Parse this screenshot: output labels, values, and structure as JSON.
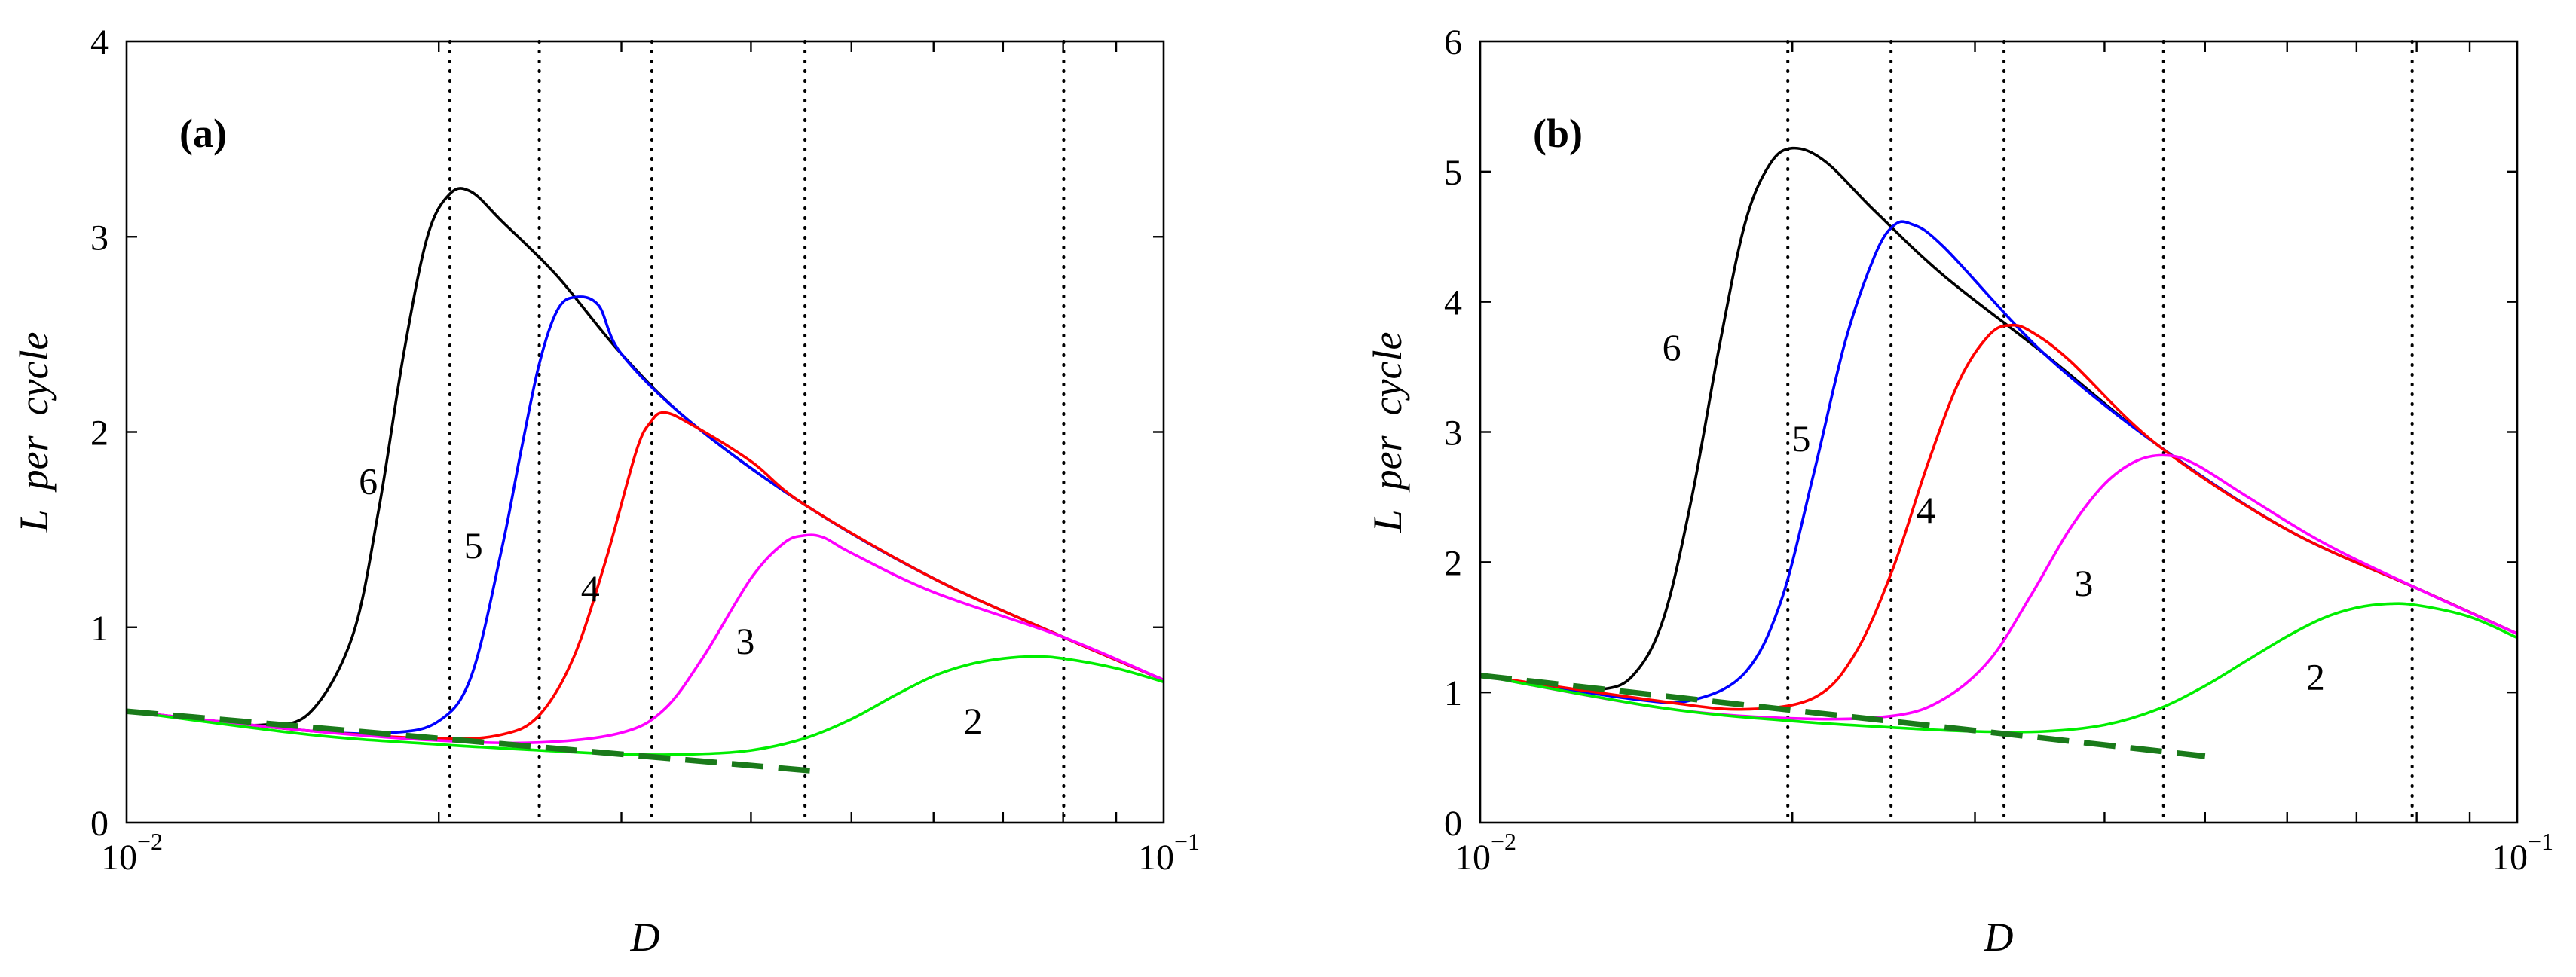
{
  "chart_data": [
    {
      "type": "line",
      "panel_label": "(a)",
      "xlabel": "D",
      "ylabel": "L  per  cycle",
      "xscale": "log",
      "xlim": [
        0.01,
        0.1
      ],
      "ylim": [
        0,
        4
      ],
      "x_ticks": [
        {
          "base": "10",
          "exp": "−2"
        },
        {
          "base": "10",
          "exp": "−1"
        }
      ],
      "y_ticks": [
        "0",
        "1",
        "2",
        "3",
        "4"
      ],
      "vlines": [
        0.0205,
        0.025,
        0.0321,
        0.0451,
        0.0801
      ],
      "series": [
        {
          "name": "6",
          "color": "#000000",
          "x": [
            0.01,
            0.012,
            0.0135,
            0.015,
            0.0165,
            0.0175,
            0.0185,
            0.0195,
            0.0205,
            0.0215,
            0.023,
            0.026,
            0.03,
            0.035,
            0.045,
            0.06,
            0.08,
            0.1
          ],
          "y": [
            0.57,
            0.52,
            0.5,
            0.56,
            0.95,
            1.6,
            2.4,
            3.0,
            3.22,
            3.23,
            3.08,
            2.8,
            2.4,
            2.05,
            1.63,
            1.25,
            0.95,
            0.73
          ]
        },
        {
          "name": "5",
          "color": "#0000ff",
          "x": [
            0.01,
            0.015,
            0.018,
            0.02,
            0.0215,
            0.023,
            0.024,
            0.025,
            0.026,
            0.027,
            0.0285,
            0.03,
            0.035,
            0.045,
            0.06,
            0.08,
            0.1
          ],
          "y": [
            0.57,
            0.47,
            0.46,
            0.52,
            0.75,
            1.4,
            1.9,
            2.35,
            2.62,
            2.69,
            2.65,
            2.4,
            2.05,
            1.63,
            1.25,
            0.95,
            0.73
          ]
        },
        {
          "name": "4",
          "color": "#ff0000",
          "x": [
            0.01,
            0.015,
            0.02,
            0.023,
            0.025,
            0.027,
            0.029,
            0.031,
            0.032,
            0.033,
            0.035,
            0.04,
            0.045,
            0.06,
            0.08,
            0.1
          ],
          "y": [
            0.57,
            0.47,
            0.43,
            0.45,
            0.55,
            0.85,
            1.35,
            1.9,
            2.05,
            2.1,
            2.04,
            1.85,
            1.63,
            1.25,
            0.95,
            0.73
          ]
        },
        {
          "name": "3",
          "color": "#ff00ff",
          "x": [
            0.01,
            0.015,
            0.02,
            0.025,
            0.03,
            0.033,
            0.036,
            0.04,
            0.043,
            0.045,
            0.047,
            0.05,
            0.06,
            0.08,
            0.1
          ],
          "y": [
            0.57,
            0.47,
            0.42,
            0.41,
            0.46,
            0.58,
            0.85,
            1.25,
            1.43,
            1.47,
            1.46,
            1.38,
            1.18,
            0.95,
            0.73
          ]
        },
        {
          "name": "2",
          "color": "#00ee00",
          "x": [
            0.01,
            0.015,
            0.02,
            0.025,
            0.03,
            0.035,
            0.04,
            0.045,
            0.05,
            0.055,
            0.06,
            0.065,
            0.07,
            0.075,
            0.08,
            0.09,
            0.1
          ],
          "y": [
            0.57,
            0.45,
            0.4,
            0.37,
            0.35,
            0.35,
            0.37,
            0.43,
            0.53,
            0.65,
            0.75,
            0.81,
            0.84,
            0.85,
            0.84,
            0.79,
            0.72
          ]
        },
        {
          "name": "asymptote",
          "color": "#1a7a1a",
          "dashed": true,
          "x": [
            0.01,
            0.047
          ],
          "y": [
            0.57,
            0.26
          ]
        }
      ],
      "curve_labels": [
        {
          "text": "6",
          "x": 0.0171,
          "y": 1.75
        },
        {
          "text": "5",
          "x": 0.0216,
          "y": 1.42
        },
        {
          "text": "4",
          "x": 0.028,
          "y": 1.2
        },
        {
          "text": "3",
          "x": 0.0395,
          "y": 0.93
        },
        {
          "text": "2",
          "x": 0.0655,
          "y": 0.52
        }
      ]
    },
    {
      "type": "line",
      "panel_label": "(b)",
      "xlabel": "D",
      "ylabel": "L  per  cycle",
      "xscale": "log",
      "xlim": [
        0.01,
        0.1
      ],
      "ylim": [
        0,
        6
      ],
      "x_ticks": [
        {
          "base": "10",
          "exp": "−2"
        },
        {
          "base": "10",
          "exp": "−1"
        }
      ],
      "y_ticks": [
        "0",
        "1",
        "2",
        "3",
        "4",
        "5",
        "6"
      ],
      "vlines": [
        0.0198,
        0.0249,
        0.032,
        0.0456,
        0.0792
      ],
      "series": [
        {
          "name": "6",
          "color": "#000000",
          "x": [
            0.01,
            0.012,
            0.013,
            0.014,
            0.015,
            0.016,
            0.017,
            0.018,
            0.019,
            0.02,
            0.0215,
            0.024,
            0.028,
            0.035,
            0.045,
            0.06,
            0.08,
            0.1
          ],
          "y": [
            1.13,
            1.03,
            1.02,
            1.12,
            1.55,
            2.5,
            3.65,
            4.6,
            5.05,
            5.18,
            5.08,
            4.7,
            4.2,
            3.6,
            2.9,
            2.25,
            1.8,
            1.45
          ]
        },
        {
          "name": "5",
          "color": "#0000ff",
          "x": [
            0.01,
            0.014,
            0.016,
            0.018,
            0.0195,
            0.021,
            0.0225,
            0.024,
            0.025,
            0.026,
            0.028,
            0.035,
            0.045,
            0.06,
            0.08,
            0.1
          ],
          "y": [
            1.13,
            0.95,
            0.94,
            1.15,
            1.7,
            2.7,
            3.7,
            4.35,
            4.58,
            4.6,
            4.42,
            3.6,
            2.9,
            2.25,
            1.8,
            1.45
          ]
        },
        {
          "name": "4",
          "color": "#ff0000",
          "x": [
            0.01,
            0.015,
            0.018,
            0.021,
            0.023,
            0.025,
            0.027,
            0.029,
            0.031,
            0.0325,
            0.034,
            0.037,
            0.045,
            0.06,
            0.08,
            0.1
          ],
          "y": [
            1.13,
            0.93,
            0.87,
            0.96,
            1.3,
            1.95,
            2.75,
            3.4,
            3.75,
            3.82,
            3.77,
            3.55,
            2.9,
            2.25,
            1.8,
            1.45
          ]
        },
        {
          "name": "3",
          "color": "#ff00ff",
          "x": [
            0.01,
            0.015,
            0.02,
            0.025,
            0.028,
            0.031,
            0.034,
            0.037,
            0.04,
            0.043,
            0.046,
            0.049,
            0.055,
            0.065,
            0.08,
            0.1
          ],
          "y": [
            1.13,
            0.88,
            0.8,
            0.82,
            0.95,
            1.25,
            1.75,
            2.25,
            2.6,
            2.78,
            2.82,
            2.75,
            2.5,
            2.15,
            1.8,
            1.45
          ]
        },
        {
          "name": "2",
          "color": "#00ee00",
          "x": [
            0.01,
            0.015,
            0.02,
            0.025,
            0.03,
            0.035,
            0.04,
            0.045,
            0.05,
            0.055,
            0.06,
            0.065,
            0.07,
            0.075,
            0.08,
            0.09,
            0.1
          ],
          "y": [
            1.13,
            0.88,
            0.78,
            0.73,
            0.7,
            0.7,
            0.75,
            0.87,
            1.05,
            1.25,
            1.43,
            1.57,
            1.65,
            1.68,
            1.67,
            1.58,
            1.42
          ]
        },
        {
          "name": "asymptote",
          "color": "#1a7a1a",
          "dashed": true,
          "x": [
            0.01,
            0.05
          ],
          "y": [
            1.13,
            0.51
          ]
        }
      ],
      "curve_labels": [
        {
          "text": "6",
          "x": 0.0153,
          "y": 3.65
        },
        {
          "text": "5",
          "x": 0.0204,
          "y": 2.95
        },
        {
          "text": "4",
          "x": 0.0269,
          "y": 2.4
        },
        {
          "text": "3",
          "x": 0.0382,
          "y": 1.84
        },
        {
          "text": "2",
          "x": 0.0639,
          "y": 1.12
        }
      ]
    }
  ]
}
